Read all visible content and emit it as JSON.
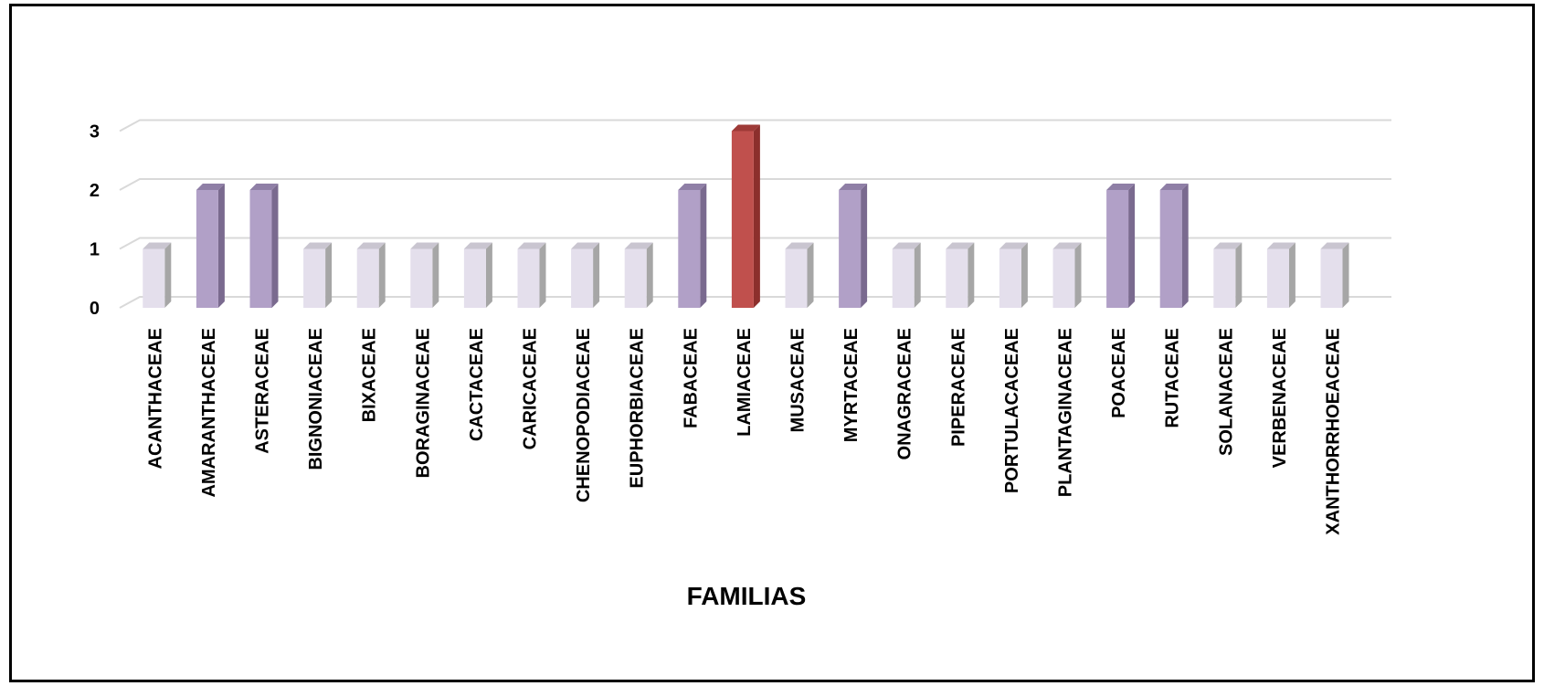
{
  "chart_data": {
    "type": "bar",
    "title": "",
    "xlabel": "FAMILIAS",
    "ylabel": "",
    "ylim": [
      0,
      3
    ],
    "yticks": [
      "0",
      "1",
      "2",
      "3"
    ],
    "grid": true,
    "legend": "none",
    "style": "3d-column",
    "categories": [
      "ACANTHACEAE",
      "AMARANTHACEAE",
      "ASTERACEAE",
      "BIGNONIACEAE",
      "BIXACEAE",
      "BORAGINACEAE",
      "CACTACEAE",
      "CARICACEAE",
      "CHENOPODIACEAE",
      "EUPHORBIACEAE",
      "FABACEAE",
      "LAMIACEAE",
      "MUSACEAE",
      "MYRTACEAE",
      "ONAGRACEAE",
      "PIPERACEAE",
      "PORTULACACEAE",
      "PLANTAGINACEAE",
      "POACEAE",
      "RUTACEAE",
      "SOLANACEAE",
      "VERBENACEAE",
      "XANTHORRHOEACEAE"
    ],
    "values": [
      1,
      2,
      2,
      1,
      1,
      1,
      1,
      1,
      1,
      1,
      2,
      3,
      1,
      2,
      1,
      1,
      1,
      1,
      2,
      2,
      1,
      1,
      1
    ],
    "colors": {
      "1": {
        "front": "#e4dfec",
        "side": "#a6a6a6",
        "top": "#c9c5d0"
      },
      "2": {
        "front": "#b1a0c7",
        "side": "#7a6a8f",
        "top": "#8f7fa6"
      },
      "3": {
        "front": "#c0504d",
        "side": "#8c2f2c",
        "top": "#9e3a37"
      }
    },
    "gridline_color": "#d9d9d9"
  }
}
